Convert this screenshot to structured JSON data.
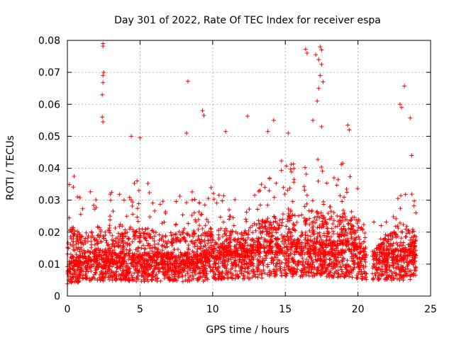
{
  "chart_data": {
    "type": "scatter",
    "title": "Day 301 of 2022, Rate Of TEC Index for receiver espa",
    "xlabel": "GPS time / hours",
    "ylabel": "ROTI / TECUs",
    "xlim": [
      0,
      25
    ],
    "ylim": [
      0,
      0.08
    ],
    "grid": true,
    "marker": "+",
    "color": "#ff0000",
    "x_ticks": [
      0,
      5,
      10,
      15,
      20,
      25
    ],
    "y_ticks": [
      0,
      0.01,
      0.02,
      0.03,
      0.04,
      0.05,
      0.06,
      0.07,
      0.08
    ],
    "x_tick_labels": [
      "0",
      "5",
      "10",
      "15",
      "20",
      "25"
    ],
    "y_tick_labels": [
      "0",
      "0.01",
      "0.02",
      "0.03",
      "0.04",
      "0.05",
      "0.06",
      "0.07",
      "0.08"
    ],
    "data_gap_hours": [
      20.6,
      21.0
    ],
    "approx_envelope": [
      {
        "x": 0.0,
        "base": 0.008,
        "upper": 0.035
      },
      {
        "x": 0.3,
        "base": 0.009,
        "upper": 0.04
      },
      {
        "x": 1.0,
        "base": 0.01,
        "upper": 0.03
      },
      {
        "x": 2.0,
        "base": 0.011,
        "upper": 0.035
      },
      {
        "x": 3.0,
        "base": 0.01,
        "upper": 0.033
      },
      {
        "x": 4.0,
        "base": 0.01,
        "upper": 0.035
      },
      {
        "x": 5.0,
        "base": 0.01,
        "upper": 0.038
      },
      {
        "x": 6.0,
        "base": 0.01,
        "upper": 0.033
      },
      {
        "x": 7.0,
        "base": 0.01,
        "upper": 0.03
      },
      {
        "x": 8.0,
        "base": 0.01,
        "upper": 0.035
      },
      {
        "x": 9.0,
        "base": 0.01,
        "upper": 0.032
      },
      {
        "x": 10.0,
        "base": 0.011,
        "upper": 0.035
      },
      {
        "x": 11.0,
        "base": 0.012,
        "upper": 0.033
      },
      {
        "x": 12.0,
        "base": 0.012,
        "upper": 0.03
      },
      {
        "x": 13.0,
        "base": 0.012,
        "upper": 0.035
      },
      {
        "x": 14.0,
        "base": 0.013,
        "upper": 0.04
      },
      {
        "x": 15.0,
        "base": 0.014,
        "upper": 0.045
      },
      {
        "x": 16.0,
        "base": 0.013,
        "upper": 0.04
      },
      {
        "x": 17.0,
        "base": 0.013,
        "upper": 0.045
      },
      {
        "x": 18.0,
        "base": 0.013,
        "upper": 0.04
      },
      {
        "x": 19.0,
        "base": 0.013,
        "upper": 0.042
      },
      {
        "x": 20.0,
        "base": 0.012,
        "upper": 0.04
      },
      {
        "x": 20.5,
        "base": 0.011,
        "upper": 0.03
      },
      {
        "x": 21.0,
        "base": 0.011,
        "upper": 0.025
      },
      {
        "x": 22.0,
        "base": 0.011,
        "upper": 0.028
      },
      {
        "x": 23.0,
        "base": 0.011,
        "upper": 0.04
      },
      {
        "x": 24.0,
        "base": 0.012,
        "upper": 0.03
      }
    ],
    "notable_points": [
      {
        "x": 2.45,
        "y": 0.079
      },
      {
        "x": 2.45,
        "y": 0.0782
      },
      {
        "x": 2.5,
        "y": 0.07
      },
      {
        "x": 2.45,
        "y": 0.069
      },
      {
        "x": 2.45,
        "y": 0.0668
      },
      {
        "x": 2.4,
        "y": 0.063
      },
      {
        "x": 2.4,
        "y": 0.056
      },
      {
        "x": 2.45,
        "y": 0.0545
      },
      {
        "x": 8.3,
        "y": 0.0672
      },
      {
        "x": 9.3,
        "y": 0.058
      },
      {
        "x": 9.4,
        "y": 0.0565
      },
      {
        "x": 12.4,
        "y": 0.0563
      },
      {
        "x": 14.2,
        "y": 0.055
      },
      {
        "x": 15.2,
        "y": 0.051
      },
      {
        "x": 16.4,
        "y": 0.0772
      },
      {
        "x": 16.5,
        "y": 0.076
      },
      {
        "x": 17.1,
        "y": 0.0755
      },
      {
        "x": 17.4,
        "y": 0.078
      },
      {
        "x": 17.5,
        "y": 0.077
      },
      {
        "x": 17.3,
        "y": 0.074
      },
      {
        "x": 17.5,
        "y": 0.0725
      },
      {
        "x": 17.4,
        "y": 0.069
      },
      {
        "x": 17.6,
        "y": 0.067
      },
      {
        "x": 17.3,
        "y": 0.065
      },
      {
        "x": 17.2,
        "y": 0.061
      },
      {
        "x": 16.9,
        "y": 0.055
      },
      {
        "x": 17.5,
        "y": 0.053
      },
      {
        "x": 19.3,
        "y": 0.0535
      },
      {
        "x": 19.4,
        "y": 0.052
      },
      {
        "x": 22.9,
        "y": 0.06
      },
      {
        "x": 23.0,
        "y": 0.059
      },
      {
        "x": 23.2,
        "y": 0.0657
      },
      {
        "x": 23.6,
        "y": 0.0557
      },
      {
        "x": 23.7,
        "y": 0.044
      },
      {
        "x": 8.2,
        "y": 0.051
      },
      {
        "x": 4.4,
        "y": 0.05
      },
      {
        "x": 5.0,
        "y": 0.0495
      },
      {
        "x": 10.9,
        "y": 0.0515
      },
      {
        "x": 13.8,
        "y": 0.0515
      }
    ]
  }
}
